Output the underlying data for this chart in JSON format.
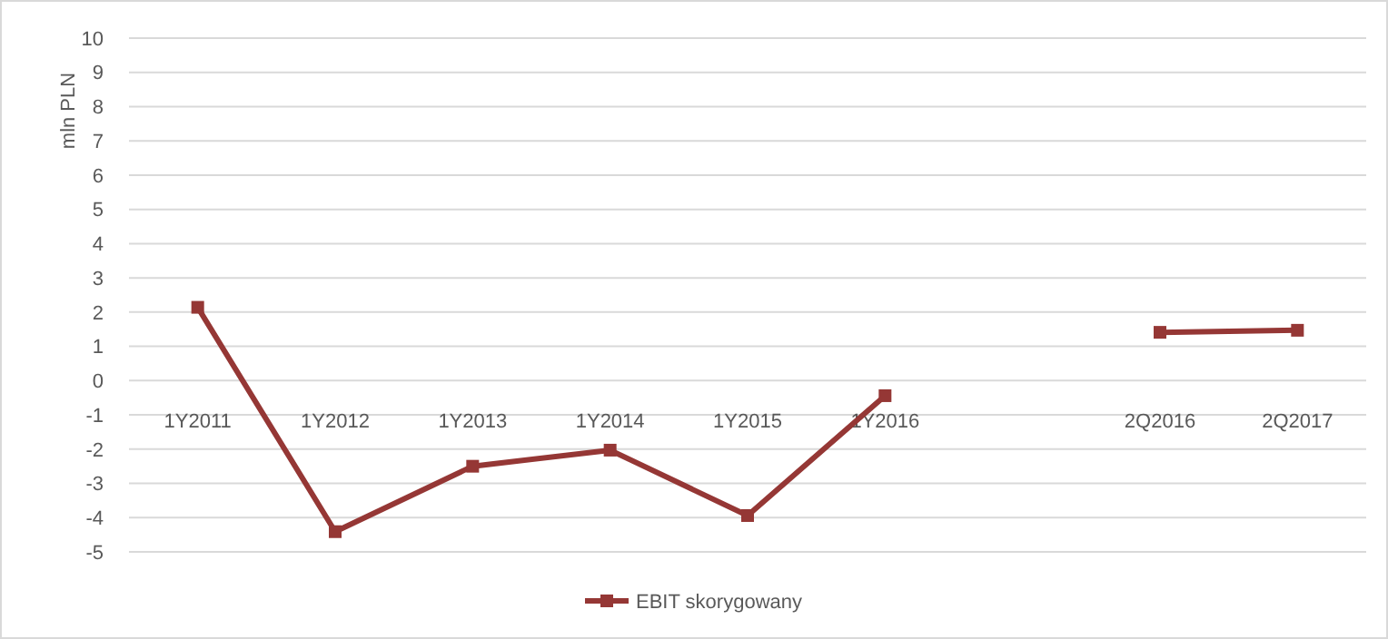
{
  "chart_data": {
    "type": "line",
    "ylabel": "mln PLN",
    "categories": [
      "1Y2011",
      "1Y2012",
      "1Y2013",
      "1Y2014",
      "1Y2015",
      "1Y2016",
      null,
      "2Q2016",
      "2Q2017"
    ],
    "series": [
      {
        "name": "EBIT skorygowany",
        "color": "#953735",
        "values": [
          2.14,
          -4.41,
          -2.5,
          -2.03,
          -3.94,
          -0.44,
          null,
          1.41,
          1.47
        ]
      }
    ],
    "ylim": [
      -5,
      10
    ],
    "yticks": [
      -5,
      -4,
      -3,
      -2,
      -1,
      0,
      1,
      2,
      3,
      4,
      5,
      6,
      7,
      8,
      9,
      10
    ],
    "grid": "y",
    "legend": "bottom",
    "marker": "square",
    "line_style": "solid"
  }
}
